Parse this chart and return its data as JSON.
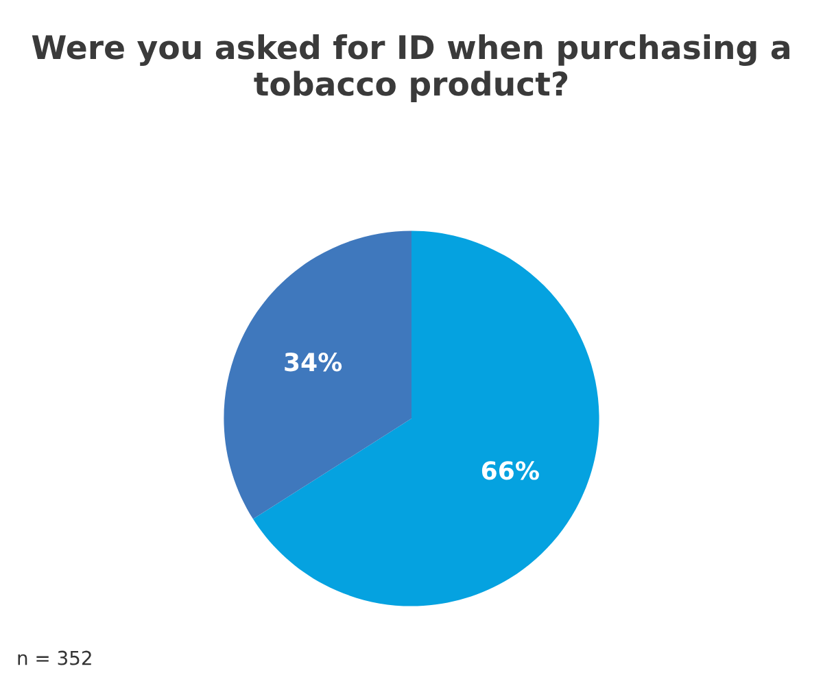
{
  "chart_data": {
    "type": "pie",
    "title": "Were you asked for ID when purchasing a tobacco product?",
    "categories": [
      null,
      null
    ],
    "values": [
      66,
      34
    ],
    "colors": [
      "#05a2e0",
      "#3f78bd"
    ],
    "value_labels": [
      "66%",
      "34%"
    ],
    "annotations": [
      "n = 352"
    ]
  }
}
